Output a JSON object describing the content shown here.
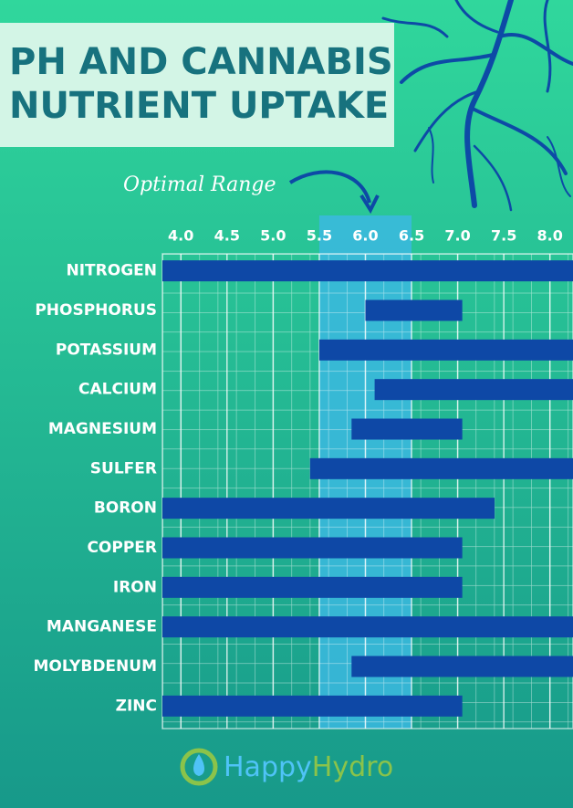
{
  "chart_data": {
    "type": "range-bar",
    "title": [
      "PH AND CANNABIS",
      "NUTRIENT UPTAKE"
    ],
    "categories": [
      "NITROGEN",
      "PHOSPHORUS",
      "POTASSIUM",
      "CALCIUM",
      "MAGNESIUM",
      "SULFER",
      "BORON",
      "COPPER",
      "IRON",
      "MANGANESE",
      "MOLYBDENUM",
      "ZINC"
    ],
    "values": [
      [
        3.8,
        8.25
      ],
      [
        6.0,
        7.05
      ],
      [
        5.5,
        8.25
      ],
      [
        6.1,
        8.25
      ],
      [
        5.85,
        7.05
      ],
      [
        5.4,
        8.25
      ],
      [
        3.8,
        7.4
      ],
      [
        3.8,
        7.05
      ],
      [
        3.8,
        7.05
      ],
      [
        3.8,
        8.25
      ],
      [
        5.85,
        8.25
      ],
      [
        3.8,
        7.05
      ]
    ],
    "color": "#0e48a6",
    "xlim": [
      3.8,
      8.25
    ],
    "xticks": [
      {
        "value": 4,
        "label": "4.0"
      },
      4.5,
      {
        "value": 5,
        "label": "5.0"
      },
      5.5,
      {
        "value": 6,
        "label": "6.0"
      },
      6.5,
      {
        "value": 7,
        "label": "7.0"
      },
      7.5,
      {
        "value": 8,
        "label": "8.0"
      }
    ],
    "grid": true,
    "highlight": {
      "label": "Optimal Range",
      "range": [
        5.5,
        6.5
      ],
      "color": "#3bb8e0"
    },
    "logo": [
      "Happy",
      "Hydro"
    ]
  }
}
